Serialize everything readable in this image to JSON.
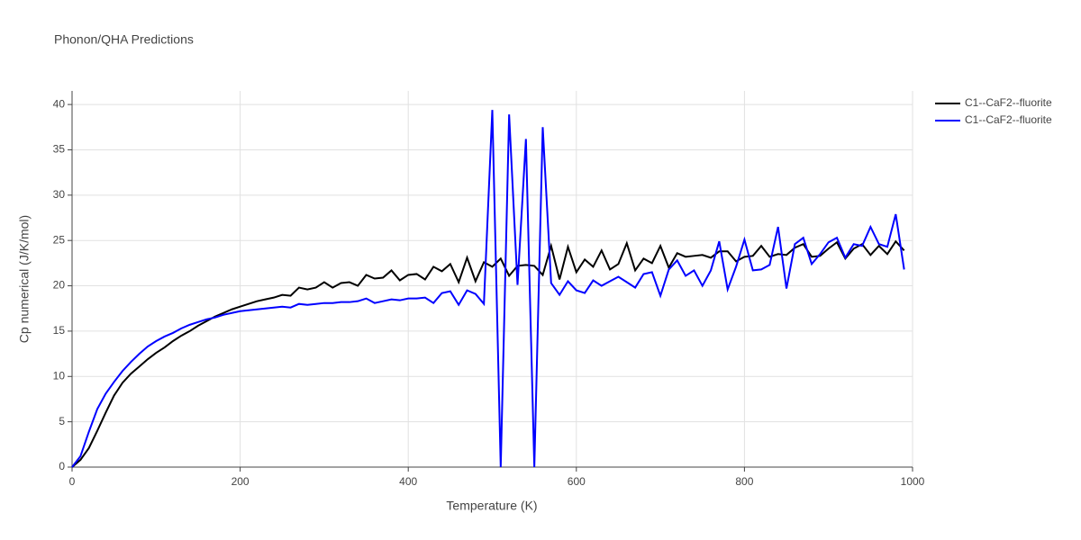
{
  "chart_data": {
    "type": "line",
    "title": "Phonon/QHA Predictions",
    "x_label": "Temperature (K)",
    "y_label": "Cp numerical (J/K/mol)",
    "x": [
      0,
      10,
      20,
      30,
      40,
      50,
      60,
      70,
      80,
      90,
      100,
      110,
      120,
      130,
      140,
      150,
      160,
      170,
      180,
      190,
      200,
      210,
      220,
      230,
      240,
      250,
      260,
      270,
      280,
      290,
      300,
      310,
      320,
      330,
      340,
      350,
      360,
      370,
      380,
      390,
      400,
      410,
      420,
      430,
      440,
      450,
      460,
      470,
      480,
      490,
      500,
      510,
      520,
      530,
      540,
      550,
      560,
      570,
      580,
      590,
      600,
      610,
      620,
      630,
      640,
      650,
      660,
      670,
      680,
      690,
      700,
      710,
      720,
      730,
      740,
      750,
      760,
      770,
      780,
      790,
      800,
      810,
      820,
      830,
      840,
      850,
      860,
      870,
      880,
      890,
      900,
      910,
      920,
      930,
      940,
      950,
      960,
      970,
      980,
      990
    ],
    "series": [
      {
        "name": "C1--CaF2--fluorite",
        "color": "#000000",
        "values": [
          0,
          0.8,
          2.1,
          4.0,
          6.0,
          7.9,
          9.3,
          10.3,
          11.1,
          11.9,
          12.6,
          13.2,
          13.9,
          14.5,
          15.0,
          15.6,
          16.1,
          16.6,
          17.0,
          17.4,
          17.7,
          18.0,
          18.3,
          18.5,
          18.7,
          19.0,
          18.9,
          19.8,
          19.6,
          19.8,
          20.4,
          19.8,
          20.3,
          20.4,
          20.0,
          21.2,
          20.8,
          20.9,
          21.7,
          20.6,
          21.2,
          21.3,
          20.7,
          22.1,
          21.6,
          22.4,
          20.4,
          23.1,
          20.5,
          22.6,
          22.1,
          23.0,
          21.1,
          22.2,
          22.3,
          22.2,
          21.2,
          24.4,
          20.7,
          24.3,
          21.5,
          22.9,
          22.1,
          23.9,
          21.8,
          22.4,
          24.7,
          21.7,
          23.0,
          22.5,
          24.4,
          22.0,
          23.6,
          23.2,
          23.3,
          23.4,
          23.1,
          23.8,
          23.8,
          22.7,
          23.2,
          23.3,
          24.4,
          23.2,
          23.5,
          23.4,
          24.2,
          24.6,
          23.2,
          23.3,
          24.1,
          24.8,
          23.0,
          24.1,
          24.6,
          23.4,
          24.4,
          23.5,
          24.9,
          23.9
        ]
      },
      {
        "name": "C1--CaF2--fluorite",
        "color": "#0000ff",
        "values": [
          0,
          1.2,
          3.9,
          6.4,
          8.1,
          9.4,
          10.6,
          11.6,
          12.5,
          13.3,
          13.9,
          14.4,
          14.8,
          15.3,
          15.7,
          16.0,
          16.3,
          16.5,
          16.8,
          17.0,
          17.2,
          17.3,
          17.4,
          17.5,
          17.6,
          17.7,
          17.6,
          18.0,
          17.9,
          18.0,
          18.1,
          18.1,
          18.2,
          18.2,
          18.3,
          18.6,
          18.1,
          18.3,
          18.5,
          18.4,
          18.6,
          18.6,
          18.7,
          18.1,
          19.2,
          19.4,
          17.9,
          19.5,
          19.1,
          18.0,
          39.4,
          0,
          38.9,
          20.1,
          36.2,
          0,
          37.5,
          20.3,
          19.0,
          20.5,
          19.5,
          19.2,
          20.6,
          20.0,
          20.5,
          21.0,
          20.4,
          19.8,
          21.3,
          21.5,
          18.9,
          21.8,
          22.8,
          21.1,
          21.7,
          20.0,
          21.7,
          24.9,
          19.6,
          22.1,
          25.1,
          21.7,
          21.8,
          22.3,
          26.5,
          19.7,
          24.6,
          25.3,
          22.4,
          23.5,
          24.8,
          25.3,
          23.1,
          24.6,
          24.4,
          26.5,
          24.6,
          24.3,
          27.9,
          21.8
        ]
      }
    ],
    "xlim": [
      0,
      1000
    ],
    "xticks": [
      0,
      200,
      400,
      600,
      800,
      1000
    ],
    "ylim": [
      0,
      41.5
    ],
    "yticks": [
      0,
      5,
      10,
      15,
      20,
      25,
      30,
      35,
      40
    ],
    "grid": true,
    "legend": "right"
  }
}
